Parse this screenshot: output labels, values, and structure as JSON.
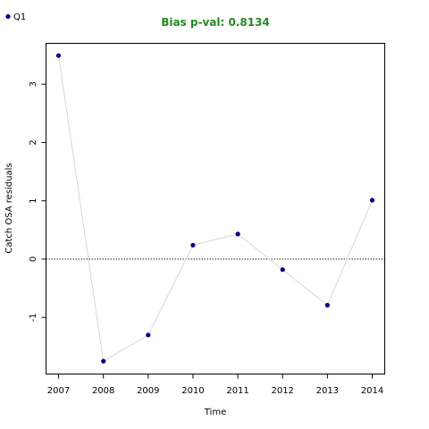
{
  "chart_data": {
    "type": "line",
    "title": "Bias p-val: 0.8134",
    "xlabel": "Time",
    "ylabel": "Catch OSA residuals",
    "x": [
      2007,
      2008,
      2009,
      2010,
      2011,
      2012,
      2013,
      2014
    ],
    "x_ticks": [
      "2007",
      "2008",
      "2009",
      "2010",
      "2011",
      "2012",
      "2013",
      "2014"
    ],
    "y_ticks": [
      "-1",
      "0",
      "1",
      "2",
      "3"
    ],
    "y_tick_values": [
      -1,
      0,
      1,
      2,
      3
    ],
    "xlim": [
      2006.72,
      2014.28
    ],
    "ylim": [
      -1.97,
      3.7
    ],
    "series": [
      {
        "name": "Q1",
        "values": [
          3.49,
          -1.75,
          -1.3,
          0.24,
          0.43,
          -0.18,
          -0.79,
          1.01
        ]
      }
    ],
    "reference_line": 0,
    "grid": false,
    "legend_position": "top-left",
    "colors": {
      "title": "#228b22",
      "point": "#00008b",
      "line": "#d3d3d3",
      "reference_line": "#000000"
    }
  }
}
